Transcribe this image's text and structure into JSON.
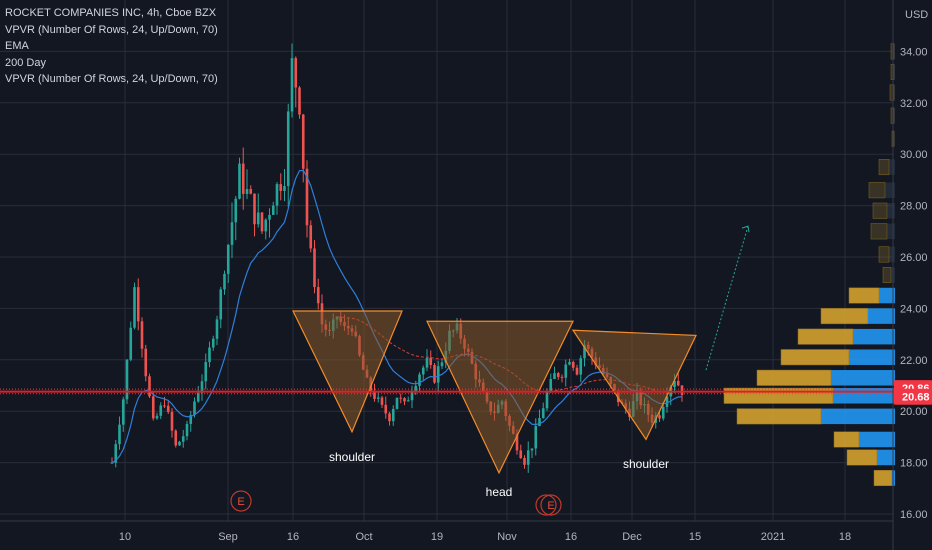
{
  "chart_data": {
    "type": "candlestick",
    "title": "ROCKET COMPANIES INC, 4h, Cboe BZX",
    "indicators": [
      "VPVR (Number Of Rows, 24, Up/Down, 70)",
      "EMA",
      "200 Day",
      "VPVR (Number Of Rows, 24, Up/Down, 70)"
    ],
    "currency": "USD",
    "y_ticks": [
      "34.00",
      "32.00",
      "30.00",
      "28.00",
      "26.00",
      "24.00",
      "22.00",
      "20.00",
      "18.00",
      "16.00"
    ],
    "x_ticks": [
      "10",
      "Sep",
      "16",
      "Oct",
      "19",
      "Nov",
      "16",
      "Dec",
      "15",
      "2021",
      "18"
    ],
    "ylim": [
      15.9,
      35.8
    ],
    "last_price_labels": [
      {
        "text": "20.86",
        "value": 20.86,
        "color": "#f23645"
      },
      {
        "text": "20.68",
        "value": 20.68,
        "color": "#f23645"
      }
    ],
    "earnings_markers": [
      "E",
      "E"
    ],
    "pattern": {
      "name": "inverse head and shoulders",
      "labels": [
        "shoulder",
        "head",
        "shoulder"
      ],
      "neckline": 20.9,
      "left_shoulder_low": 19.2,
      "head_low": 17.6,
      "right_shoulder_low": 18.9,
      "left_shoulder_top": 23.9,
      "head_top": 23.5,
      "right_shoulder_top": 23.1,
      "target_arrow_top": 27.2
    },
    "price_path": [
      [
        0,
        18.0
      ],
      [
        3,
        20.5
      ],
      [
        6,
        24.8
      ],
      [
        9,
        21.5
      ],
      [
        11,
        19.5
      ],
      [
        14,
        20.4
      ],
      [
        17,
        18.6
      ],
      [
        20,
        19.3
      ],
      [
        22,
        20.4
      ],
      [
        25,
        21.7
      ],
      [
        28,
        23.7
      ],
      [
        31,
        26.5
      ],
      [
        34,
        29.2
      ],
      [
        37,
        28.1
      ],
      [
        40,
        27.0
      ],
      [
        43,
        28.4
      ],
      [
        46,
        29.3
      ],
      [
        48,
        33.5
      ],
      [
        50,
        32.0
      ],
      [
        52,
        27.3
      ],
      [
        54,
        25.0
      ],
      [
        56,
        23.4
      ],
      [
        58,
        23.0
      ],
      [
        60,
        23.7
      ],
      [
        62,
        23.2
      ],
      [
        64,
        23.3
      ],
      [
        66,
        22.1
      ],
      [
        68,
        21.1
      ],
      [
        70,
        20.6
      ],
      [
        72,
        20.1
      ],
      [
        74,
        19.8
      ],
      [
        76,
        20.6
      ],
      [
        78,
        20.2
      ],
      [
        80,
        20.9
      ],
      [
        82,
        21.5
      ],
      [
        84,
        21.9
      ],
      [
        86,
        21.3
      ],
      [
        88,
        22.0
      ],
      [
        90,
        23.0
      ],
      [
        92,
        23.2
      ],
      [
        94,
        22.6
      ],
      [
        96,
        21.8
      ],
      [
        98,
        21.0
      ],
      [
        100,
        20.2
      ],
      [
        102,
        20.0
      ],
      [
        104,
        20.4
      ],
      [
        106,
        19.4
      ],
      [
        108,
        18.7
      ],
      [
        110,
        18.1
      ],
      [
        112,
        18.7
      ],
      [
        114,
        19.7
      ],
      [
        116,
        20.7
      ],
      [
        118,
        21.4
      ],
      [
        120,
        21.5
      ],
      [
        122,
        22.1
      ],
      [
        124,
        21.6
      ],
      [
        126,
        22.6
      ],
      [
        128,
        22.1
      ],
      [
        130,
        21.7
      ],
      [
        132,
        21.2
      ],
      [
        134,
        20.7
      ],
      [
        136,
        20.2
      ],
      [
        138,
        20.0
      ],
      [
        140,
        20.6
      ],
      [
        142,
        20.1
      ],
      [
        144,
        19.7
      ],
      [
        146,
        19.9
      ],
      [
        148,
        20.8
      ],
      [
        150,
        21.3
      ],
      [
        152,
        20.8
      ]
    ],
    "volume_profile_right": [
      {
        "price": 34.0,
        "up": 1,
        "down": 3
      },
      {
        "price": 33.2,
        "up": 1,
        "down": 3
      },
      {
        "price": 32.4,
        "up": 1,
        "down": 4
      },
      {
        "price": 31.5,
        "up": 1,
        "down": 3
      },
      {
        "price": 30.6,
        "up": 1,
        "down": 2
      },
      {
        "price": 29.5,
        "up": 6,
        "down": 10
      },
      {
        "price": 28.6,
        "up": 10,
        "down": 16
      },
      {
        "price": 27.8,
        "up": 8,
        "down": 14
      },
      {
        "price": 27.0,
        "up": 8,
        "down": 16
      },
      {
        "price": 26.1,
        "up": 6,
        "down": 10
      },
      {
        "price": 25.3,
        "up": 4,
        "down": 8
      },
      {
        "price": 24.5,
        "up": 16,
        "down": 30
      },
      {
        "price": 23.7,
        "up": 27,
        "down": 47
      },
      {
        "price": 22.9,
        "up": 42,
        "down": 55
      },
      {
        "price": 22.1,
        "up": 46,
        "down": 68
      },
      {
        "price": 21.3,
        "up": 64,
        "down": 74
      },
      {
        "price": 20.6,
        "up": 62,
        "down": 109
      },
      {
        "price": 19.8,
        "up": 74,
        "down": 84
      },
      {
        "price": 18.9,
        "up": 36,
        "down": 25
      },
      {
        "price": 18.2,
        "up": 18,
        "down": 30
      },
      {
        "price": 17.4,
        "up": 3,
        "down": 18
      }
    ]
  }
}
